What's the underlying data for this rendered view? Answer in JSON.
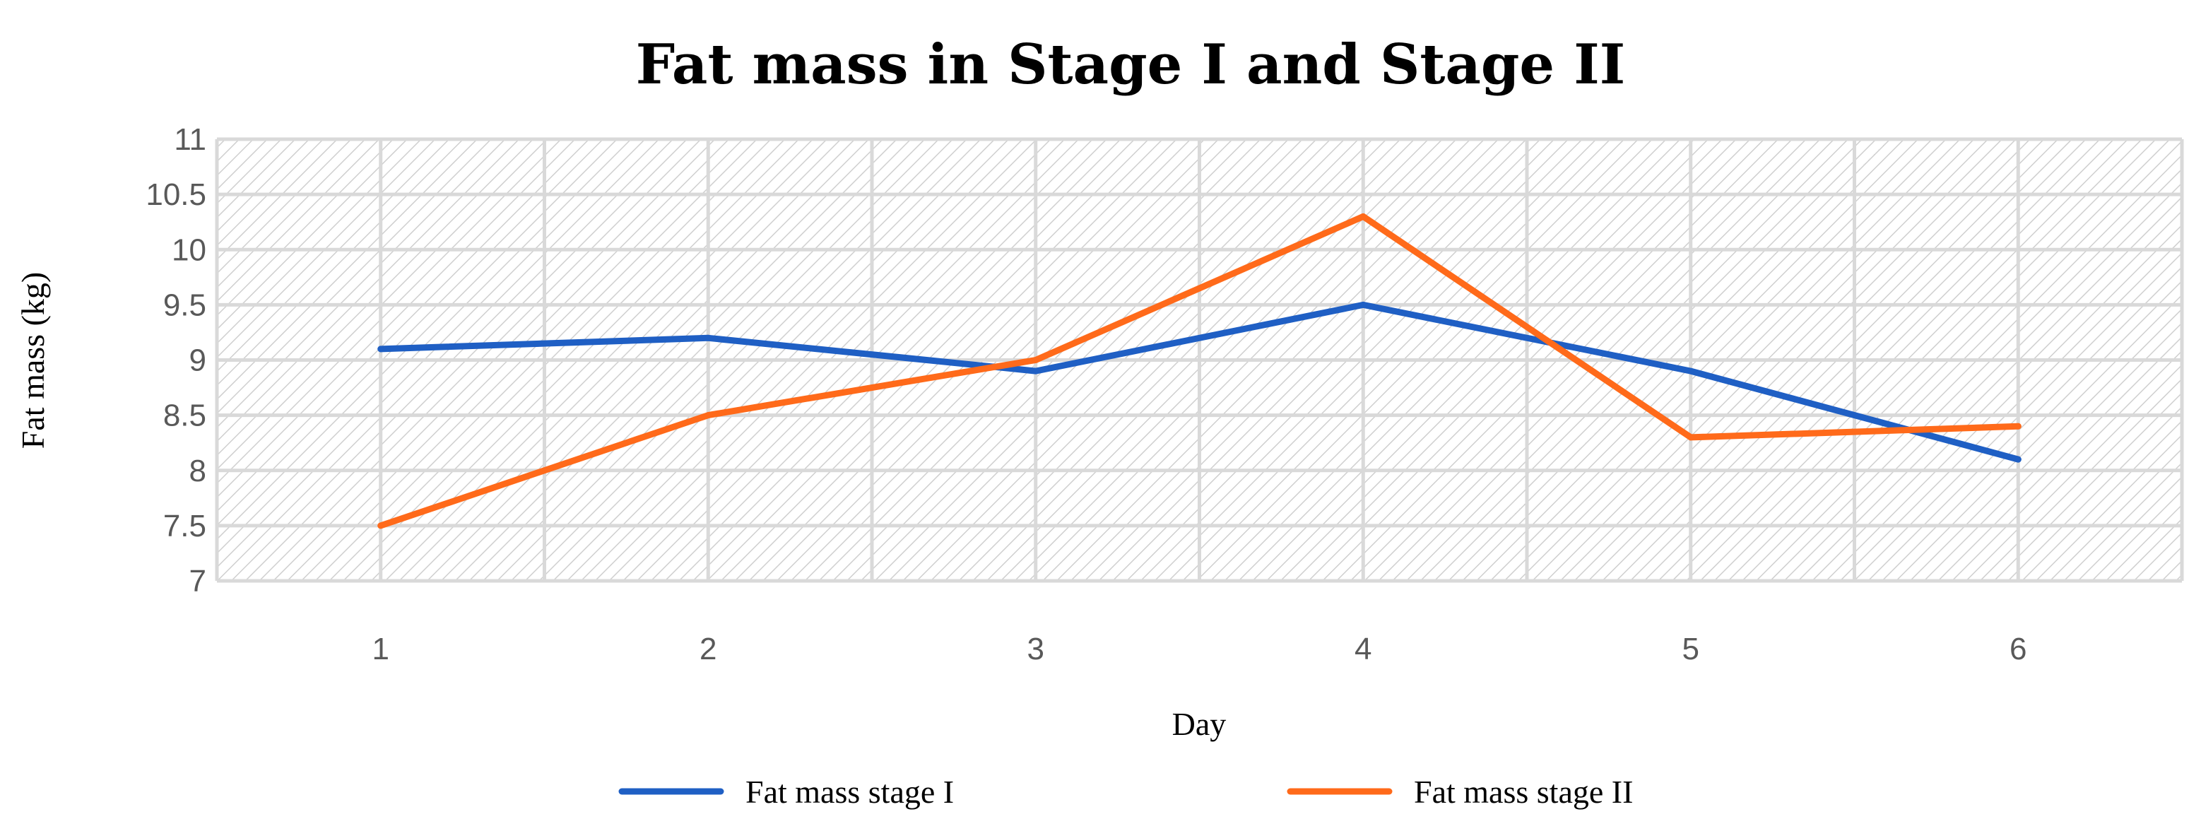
{
  "chart_data": {
    "type": "line",
    "title": "Fat mass in Stage I and Stage II",
    "xlabel": "Day",
    "ylabel": "Fat mass (kg)",
    "categories": [
      "1",
      "2",
      "3",
      "4",
      "5",
      "6"
    ],
    "ylim": [
      7,
      11
    ],
    "ytick_step": 0.5,
    "yticks": [
      "7",
      "7.5",
      "8",
      "8.5",
      "9",
      "9.5",
      "10",
      "10.5",
      "11"
    ],
    "grid": true,
    "legend_position": "bottom",
    "series": [
      {
        "name": "Fat mass stage I",
        "color": "#1f5fc4",
        "values": [
          9.1,
          9.2,
          8.9,
          9.5,
          8.9,
          8.1
        ]
      },
      {
        "name": "Fat mass stage II",
        "color": "#ff6a1a",
        "values": [
          7.5,
          8.5,
          9.0,
          10.3,
          8.3,
          8.4
        ]
      }
    ],
    "plot_background": "hatched",
    "gridline_color": "#d9d9d9"
  }
}
